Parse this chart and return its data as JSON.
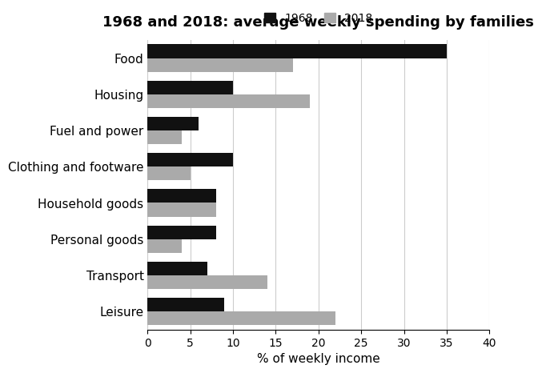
{
  "title": "1968 and 2018: average weekly spending by families",
  "xlabel": "% of weekly income",
  "categories": [
    "Food",
    "Housing",
    "Fuel and power",
    "Clothing and footware",
    "Household goods",
    "Personal goods",
    "Transport",
    "Leisure"
  ],
  "values_1968": [
    35,
    10,
    6,
    10,
    8,
    8,
    7,
    9
  ],
  "values_2018": [
    17,
    19,
    4,
    5,
    8,
    4,
    14,
    22
  ],
  "color_1968": "#111111",
  "color_2018": "#aaaaaa",
  "xlim": [
    0,
    40
  ],
  "xticks": [
    0,
    5,
    10,
    15,
    20,
    25,
    30,
    35,
    40
  ],
  "bar_height": 0.38,
  "legend_labels": [
    "1968",
    "2018"
  ],
  "title_fontsize": 13,
  "label_fontsize": 11,
  "tick_fontsize": 10,
  "background_color": "#ffffff"
}
